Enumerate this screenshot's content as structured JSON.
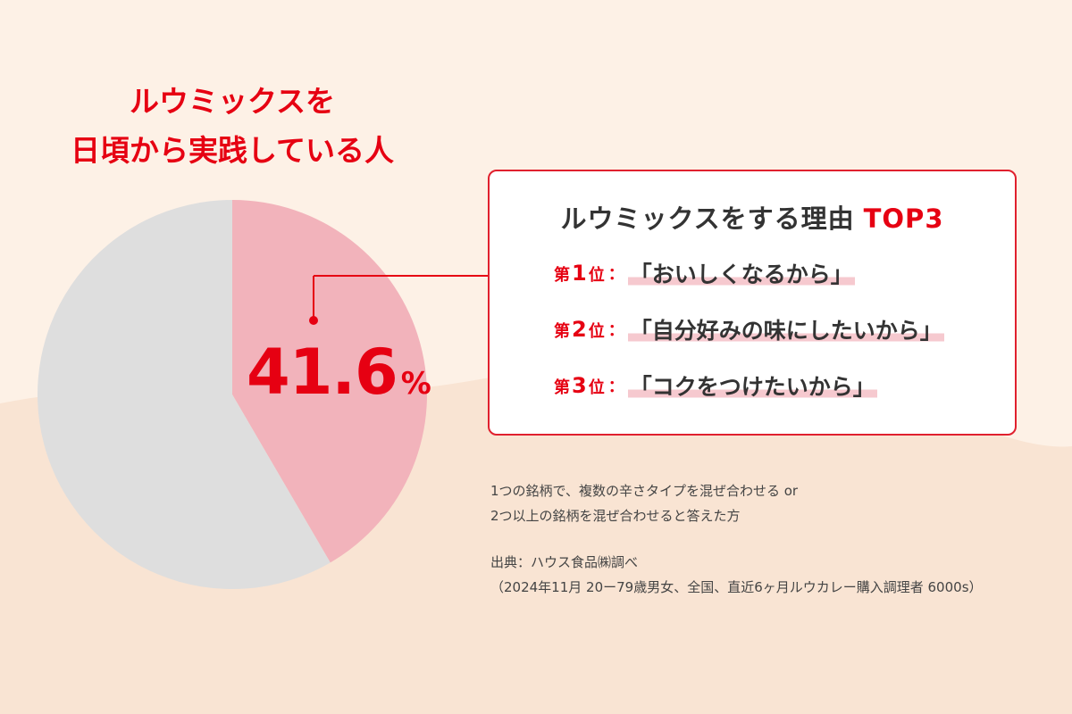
{
  "title": {
    "line1": "ルウミックスを",
    "line2": "日頃から実践している人"
  },
  "chart_data": {
    "type": "pie",
    "title": "",
    "slices": [
      {
        "label": "ルウミックスを日頃から実践している人",
        "value": 41.6,
        "color": "#f2b3bb"
      },
      {
        "label": "",
        "value": 58.4,
        "color": "#dedede"
      }
    ],
    "data_label": "41.6",
    "data_label_unit": "%",
    "legend": "none",
    "grid": false
  },
  "reasons": {
    "heading": "ルウミックスをする理由",
    "heading_accent": "TOP3",
    "items": [
      {
        "rank_prefix": "第",
        "rank_num": "1",
        "rank_suffix": "位",
        "text": "「おいしくなるから」"
      },
      {
        "rank_prefix": "第",
        "rank_num": "2",
        "rank_suffix": "位",
        "text": "「自分好みの味にしたいから」"
      },
      {
        "rank_prefix": "第",
        "rank_num": "3",
        "rank_suffix": "位",
        "text": "「コクをつけたいから」"
      }
    ],
    "separator": "："
  },
  "footnote": {
    "definition_line1": "1つの銘柄で、複数の辛さタイプを混ぜ合わせる or",
    "definition_line2": "2つ以上の銘柄を混ぜ合わせると答えた方",
    "source_line1": "出典：ハウス食品㈱調べ",
    "source_line2": "（2024年11月  20ー79歳男女、全国、直近6ヶ月ルウカレー購入調理者 6000s）"
  },
  "colors": {
    "accent": "#e60012",
    "background": "#fdf1e6",
    "wave": "#f9e4d3",
    "pie_highlight": "#f2b3bb",
    "pie_rest": "#dedede"
  }
}
